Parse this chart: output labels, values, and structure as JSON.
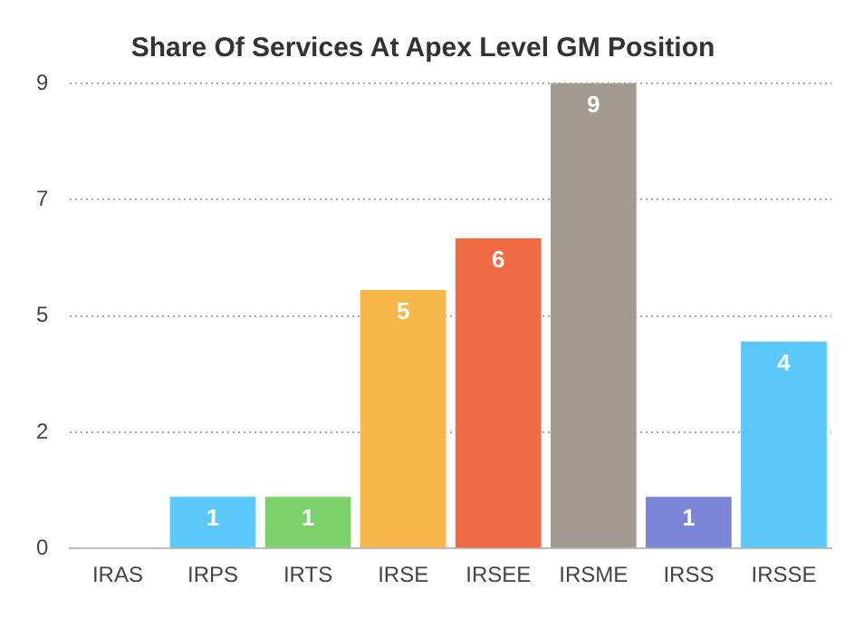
{
  "chart_data": {
    "type": "bar",
    "title": "Share Of Services At Apex Level GM Position",
    "categories": [
      "IRAS",
      "IRPS",
      "IRTS",
      "IRSE",
      "IRSEE",
      "IRSME",
      "IRSS",
      "IRSSE"
    ],
    "values": [
      0,
      1,
      1,
      5,
      6,
      9,
      1,
      4
    ],
    "colors": [
      "#5ac8fa",
      "#5ac8fa",
      "#7dd16a",
      "#f7b84b",
      "#f06a44",
      "#a19b92",
      "#7b86d8",
      "#5ac8fa"
    ],
    "value_labels": [
      null,
      "1",
      "1",
      "5",
      "6",
      "9",
      "1",
      "4"
    ],
    "ylim": [
      0,
      9
    ],
    "yticks": [
      0,
      {
        "value": 2.25,
        "label": "2"
      },
      {
        "value": 4.5,
        "label": "5"
      },
      {
        "value": 6.75,
        "label": "7"
      },
      9
    ],
    "grid": "y",
    "legend": false
  }
}
